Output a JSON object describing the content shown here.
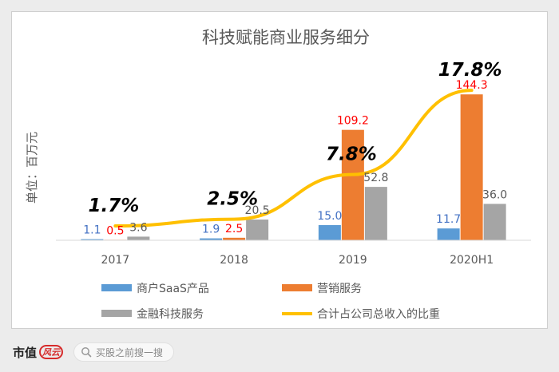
{
  "chart_data": {
    "type": "bar",
    "title": "科技赋能商业服务细分",
    "ylabel": "单位：百万元",
    "xlabel": "",
    "categories": [
      "2017",
      "2018",
      "2019",
      "2020H1"
    ],
    "series": [
      {
        "name": "商户SaaS产品",
        "values": [
          1.1,
          1.9,
          15.0,
          11.7
        ],
        "labels": [
          "1.1",
          "1.9",
          "15.0",
          "11.7"
        ],
        "color": "#5b9bd5",
        "label_color": "#4472c4"
      },
      {
        "name": "营销服务",
        "values": [
          0.5,
          2.5,
          109.2,
          144.3
        ],
        "labels": [
          "0.5",
          "2.5",
          "109.2",
          "144.3"
        ],
        "color": "#ed7d31",
        "label_color": "#ff0000"
      },
      {
        "name": "金融科技服务",
        "values": [
          3.6,
          20.5,
          52.8,
          36.0
        ],
        "labels": [
          "3.6",
          "20.5",
          "52.8",
          "36.0"
        ],
        "color": "#a5a5a5",
        "label_color": "#595959"
      }
    ],
    "line": {
      "name": "合计占公司总收入的比重",
      "values": [
        1.7,
        2.5,
        7.8,
        17.8
      ],
      "labels": [
        "1.7%",
        "2.5%",
        "7.8%",
        "17.8%"
      ],
      "color": "#ffc000"
    },
    "ylim": [
      0,
      150
    ],
    "line_ylim": [
      0,
      18
    ],
    "grid": false,
    "legend_position": "bottom"
  },
  "footer": {
    "brand": "市值",
    "brand_seal": "风云",
    "search_placeholder": "买股之前搜一搜"
  }
}
